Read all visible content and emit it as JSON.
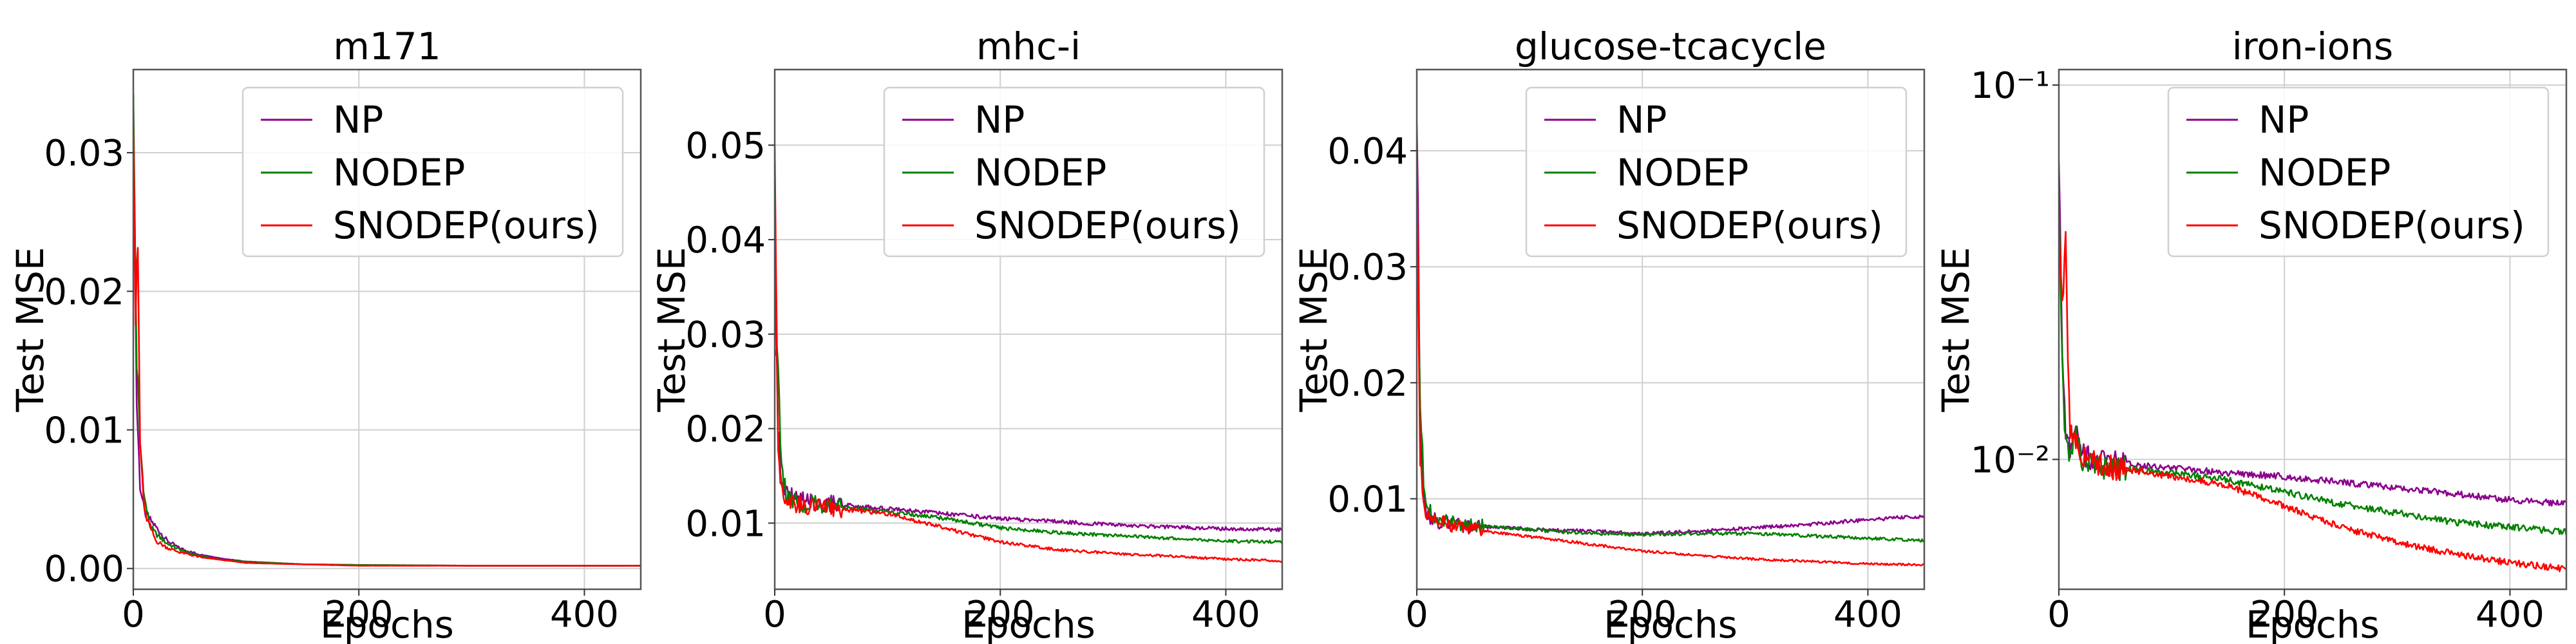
{
  "colors": {
    "NP": "#8b008b",
    "NODEP": "#008000",
    "SNODEP(ours)": "#ff0000"
  },
  "chart_data": [
    {
      "type": "line",
      "title": "m171",
      "xlabel": "Epochs",
      "ylabel": "Test MSE",
      "xlim": [
        0,
        450
      ],
      "ylim": [
        -0.0015,
        0.036
      ],
      "yscale": "linear",
      "xticks": [
        0,
        200,
        400
      ],
      "xtick_labels": [
        "0",
        "200",
        "400"
      ],
      "yticks": [
        0.0,
        0.01,
        0.02,
        0.03
      ],
      "ytick_labels": [
        "0.00",
        "0.01",
        "0.02",
        "0.03"
      ],
      "grid": true,
      "legend": "top-right",
      "series": [
        {
          "name": "NP",
          "x": [
            0,
            3,
            6,
            10,
            15,
            20,
            30,
            40,
            50,
            60,
            80,
            100,
            150,
            200,
            300,
            450
          ],
          "y": [
            0.032,
            0.012,
            0.006,
            0.004,
            0.0035,
            0.003,
            0.002,
            0.0015,
            0.0012,
            0.001,
            0.0007,
            0.0005,
            0.0003,
            0.00025,
            0.0002,
            0.0002
          ]
        },
        {
          "name": "NODEP",
          "x": [
            0,
            3,
            6,
            10,
            15,
            20,
            30,
            40,
            50,
            60,
            80,
            100,
            150,
            200,
            300,
            450
          ],
          "y": [
            0.033,
            0.015,
            0.009,
            0.005,
            0.003,
            0.0025,
            0.0018,
            0.0014,
            0.0011,
            0.0009,
            0.0006,
            0.0005,
            0.0003,
            0.00025,
            0.0002,
            0.0002
          ]
        },
        {
          "name": "SNODEP(ours)",
          "x": [
            0,
            2,
            4,
            6,
            10,
            15,
            20,
            30,
            40,
            50,
            60,
            80,
            100,
            150,
            200,
            300,
            450
          ],
          "y": [
            0.0345,
            0.018,
            0.023,
            0.009,
            0.004,
            0.003,
            0.002,
            0.0015,
            0.0012,
            0.001,
            0.0008,
            0.0006,
            0.0004,
            0.0003,
            0.0002,
            0.0002,
            0.0002
          ]
        }
      ]
    },
    {
      "type": "line",
      "title": "mhc-i",
      "xlabel": "Epochs",
      "ylabel": "Test MSE",
      "xlim": [
        0,
        450
      ],
      "ylim": [
        0.003,
        0.058
      ],
      "yscale": "linear",
      "xticks": [
        0,
        200,
        400
      ],
      "xtick_labels": [
        "0",
        "200",
        "400"
      ],
      "yticks": [
        0.01,
        0.02,
        0.03,
        0.04,
        0.05
      ],
      "ytick_labels": [
        "0.01",
        "0.02",
        "0.03",
        "0.04",
        "0.05"
      ],
      "grid": true,
      "legend": "top-right",
      "series": [
        {
          "name": "NP",
          "x": [
            0,
            3,
            6,
            10,
            20,
            30,
            50,
            100,
            150,
            200,
            250,
            300,
            350,
            400,
            450
          ],
          "y": [
            0.035,
            0.02,
            0.015,
            0.013,
            0.0125,
            0.0122,
            0.012,
            0.0115,
            0.011,
            0.0105,
            0.0102,
            0.0098,
            0.0096,
            0.0094,
            0.0093
          ]
        },
        {
          "name": "NODEP",
          "x": [
            0,
            3,
            6,
            10,
            20,
            30,
            50,
            100,
            150,
            200,
            250,
            300,
            350,
            400,
            450
          ],
          "y": [
            0.028,
            0.026,
            0.016,
            0.013,
            0.0122,
            0.012,
            0.0118,
            0.0112,
            0.0105,
            0.0095,
            0.009,
            0.0087,
            0.0084,
            0.0081,
            0.008
          ]
        },
        {
          "name": "SNODEP(ours)",
          "x": [
            0,
            3,
            6,
            10,
            20,
            30,
            50,
            100,
            150,
            200,
            250,
            300,
            350,
            400,
            450
          ],
          "y": [
            0.052,
            0.018,
            0.014,
            0.0125,
            0.012,
            0.0118,
            0.0116,
            0.011,
            0.0095,
            0.008,
            0.0072,
            0.0068,
            0.0065,
            0.0062,
            0.006
          ]
        }
      ]
    },
    {
      "type": "line",
      "title": "glucose-tcacycle",
      "xlabel": "Epochs",
      "ylabel": "Test MSE",
      "xlim": [
        0,
        450
      ],
      "ylim": [
        0.0022,
        0.047
      ],
      "yscale": "linear",
      "xticks": [
        0,
        200,
        400
      ],
      "xtick_labels": [
        "0",
        "200",
        "400"
      ],
      "yticks": [
        0.01,
        0.02,
        0.03,
        0.04
      ],
      "ytick_labels": [
        "0.01",
        "0.02",
        "0.03",
        "0.04"
      ],
      "grid": true,
      "legend": "top-right",
      "series": [
        {
          "name": "NP",
          "x": [
            0,
            3,
            6,
            10,
            20,
            40,
            80,
            120,
            160,
            200,
            250,
            300,
            350,
            400,
            450
          ],
          "y": [
            0.045,
            0.015,
            0.01,
            0.0085,
            0.008,
            0.0077,
            0.0075,
            0.0073,
            0.0072,
            0.007,
            0.0072,
            0.0075,
            0.0078,
            0.0082,
            0.0085
          ]
        },
        {
          "name": "NODEP",
          "x": [
            0,
            3,
            6,
            10,
            20,
            40,
            80,
            120,
            160,
            200,
            250,
            300,
            350,
            400,
            450
          ],
          "y": [
            0.03,
            0.019,
            0.011,
            0.009,
            0.0082,
            0.0078,
            0.0075,
            0.0072,
            0.007,
            0.0069,
            0.007,
            0.007,
            0.0068,
            0.0066,
            0.0064
          ]
        },
        {
          "name": "SNODEP(ours)",
          "x": [
            0,
            3,
            6,
            10,
            20,
            40,
            80,
            120,
            160,
            200,
            250,
            300,
            350,
            400,
            450
          ],
          "y": [
            0.04,
            0.013,
            0.0095,
            0.0085,
            0.008,
            0.0075,
            0.007,
            0.0065,
            0.006,
            0.0055,
            0.0051,
            0.0048,
            0.0046,
            0.0044,
            0.0043
          ]
        }
      ]
    },
    {
      "type": "line",
      "title": "iron-ions",
      "xlabel": "Epochs",
      "ylabel": "Test MSE",
      "xlim": [
        0,
        450
      ],
      "ylim": [
        0.0045,
        0.11
      ],
      "yscale": "log",
      "xticks": [
        0,
        200,
        400
      ],
      "xtick_labels": [
        "0",
        "200",
        "400"
      ],
      "yticks": [
        0.01,
        0.1
      ],
      "ytick_labels": [
        "10⁻²",
        "10⁻¹"
      ],
      "grid": true,
      "legend": "top-right",
      "series": [
        {
          "name": "NP",
          "x": [
            0,
            3,
            6,
            10,
            15,
            20,
            30,
            50,
            100,
            150,
            200,
            250,
            300,
            350,
            400,
            450
          ],
          "y": [
            0.06,
            0.02,
            0.012,
            0.011,
            0.0125,
            0.0105,
            0.01,
            0.0098,
            0.0095,
            0.0092,
            0.009,
            0.0087,
            0.0084,
            0.0081,
            0.0078,
            0.0076
          ]
        },
        {
          "name": "NODEP",
          "x": [
            0,
            3,
            6,
            10,
            15,
            20,
            30,
            50,
            100,
            150,
            200,
            250,
            300,
            350,
            400,
            450
          ],
          "y": [
            0.05,
            0.018,
            0.011,
            0.0105,
            0.0115,
            0.01,
            0.0097,
            0.0095,
            0.0092,
            0.0088,
            0.0082,
            0.0076,
            0.0072,
            0.0068,
            0.0066,
            0.0064
          ]
        },
        {
          "name": "SNODEP(ours)",
          "x": [
            0,
            3,
            6,
            8,
            10,
            15,
            20,
            30,
            50,
            100,
            150,
            200,
            250,
            300,
            350,
            400,
            450
          ],
          "y": [
            0.045,
            0.025,
            0.038,
            0.018,
            0.012,
            0.011,
            0.0105,
            0.01,
            0.0095,
            0.009,
            0.0085,
            0.0075,
            0.0066,
            0.006,
            0.0056,
            0.0053,
            0.0051
          ]
        }
      ]
    }
  ]
}
